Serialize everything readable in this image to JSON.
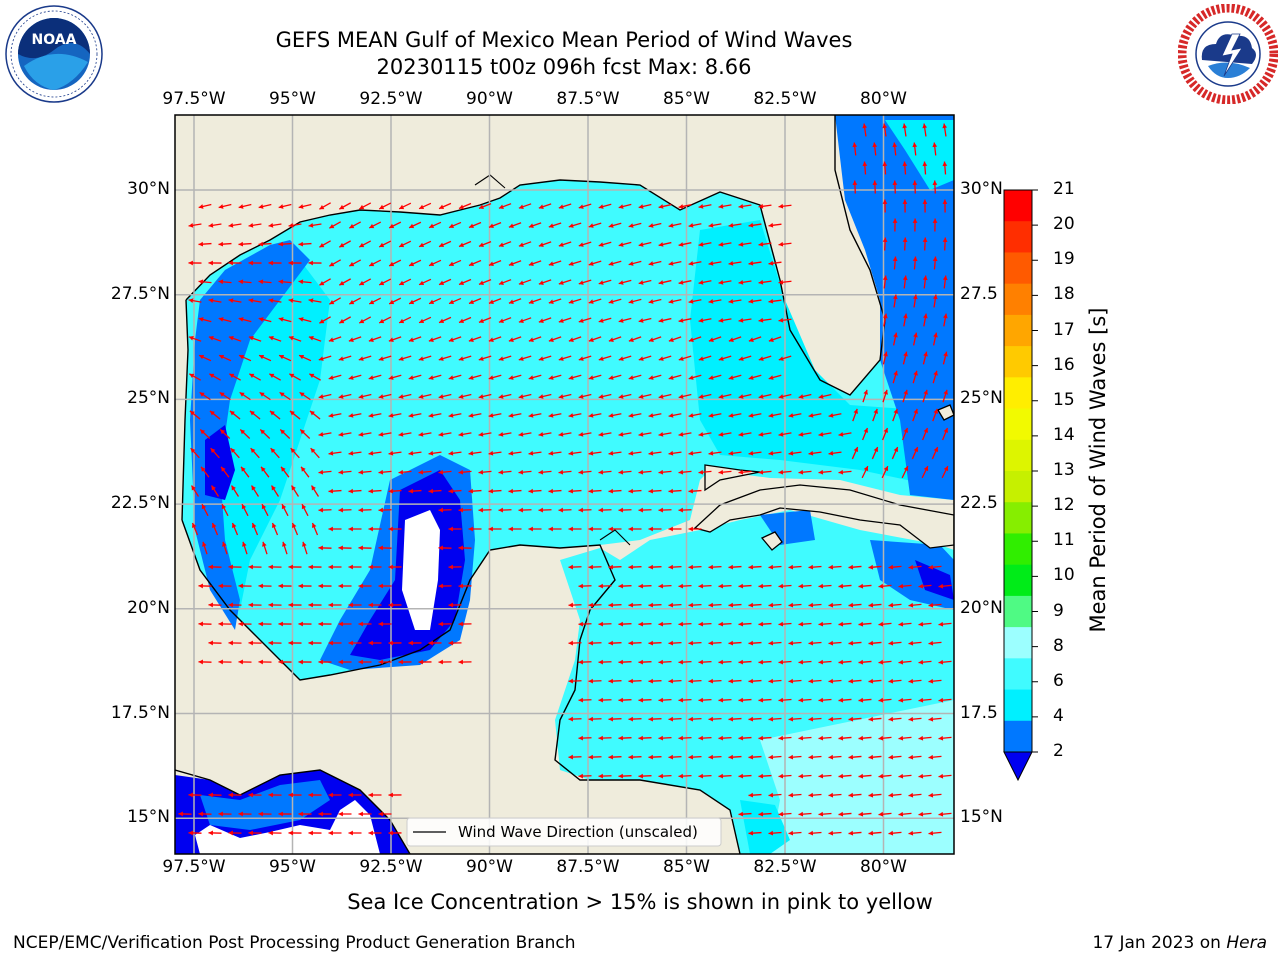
{
  "title": {
    "line1": "GEFS MEAN Gulf of Mexico Mean Period of Wind Waves",
    "line2": "20230115 t00z 096h fcst   Max: 8.66"
  },
  "logos": {
    "left": {
      "icon": "noaa-logo",
      "text": "NOAA",
      "ring_text": "NATIONAL OCEANIC AND ATMOSPHERIC ADMINISTRATION · U.S. DEPARTMENT OF COMMERCE"
    },
    "right": {
      "icon": "nws-logo",
      "ring_text": "NATIONAL WEATHER SERVICE"
    }
  },
  "map": {
    "lon_labels": [
      "97.5°W",
      "95°W",
      "92.5°W",
      "90°W",
      "87.5°W",
      "85°W",
      "82.5°W",
      "80°W"
    ],
    "lat_labels_left": [
      "30°N",
      "27.5°N",
      "25°N",
      "22.5°N",
      "20°N",
      "17.5°N",
      "15°N"
    ],
    "lat_labels_right": [
      "30°N",
      "27.5",
      "25°N",
      "22.5",
      "20°N",
      "17.5",
      "15°N"
    ],
    "colors": {
      "land": "#efecdc",
      "ocean_4_6": "#00f0ff",
      "ocean_6_8": "#40fbff",
      "ocean_8_9": "#9cffff",
      "ocean_2_4": "#0078ff",
      "ocean_lt_2": "#0000f0",
      "arrows": "#ff0000",
      "grid": "#b4b4b4"
    },
    "legend": {
      "text": "Wind Wave Direction (unscaled)"
    }
  },
  "colorbar": {
    "label": "Mean Period of Wind Waves [s]",
    "ticks": [
      "21",
      "20",
      "19",
      "18",
      "17",
      "16",
      "15",
      "14",
      "13",
      "12",
      "11",
      "10",
      "9",
      "8",
      "6",
      "4",
      "2"
    ],
    "colors": [
      "#ff0000",
      "#ff2e00",
      "#ff5a00",
      "#ff8000",
      "#ffa600",
      "#ffca00",
      "#ffee00",
      "#f2fa00",
      "#ddf500",
      "#c6f000",
      "#86ee00",
      "#30ee00",
      "#00ec18",
      "#4ffa84",
      "#9cffff",
      "#40fbff",
      "#00f0ff",
      "#0078ff",
      "#0000f0"
    ]
  },
  "notes": {
    "sea_ice": "Sea Ice Concentration > 15% is shown in pink to yellow",
    "footer_left": "NCEP/EMC/Verification Post Processing Product Generation Branch",
    "footer_right_prefix": "17 Jan 2023 on ",
    "footer_right_host": "Hera"
  }
}
